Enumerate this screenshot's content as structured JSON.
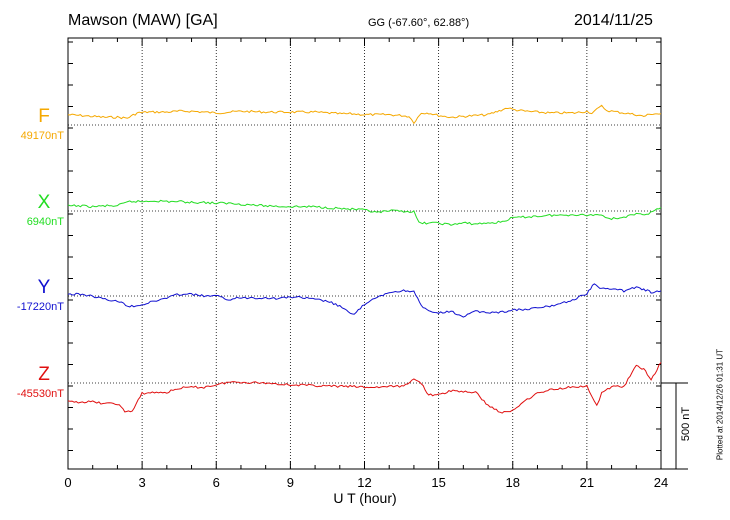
{
  "header": {
    "station": "Mawson (MAW)  [GA]",
    "coords": "GG (-67.60°,  62.88°)",
    "date": "2014/11/25"
  },
  "footer_note": "Plotted at 2014/12/26 01:31  UT",
  "scale_label": "500 nT",
  "colors": {
    "F": "#f5a800",
    "X": "#22dd22",
    "Y": "#1010d0",
    "Z": "#e01010"
  },
  "chart_data": {
    "type": "line",
    "xlabel": "U T (hour)",
    "xlim": [
      0,
      24
    ],
    "xticks": [
      "0",
      "3",
      "6",
      "9",
      "12",
      "15",
      "18",
      "21",
      "24"
    ],
    "grid": true,
    "series": [
      {
        "name": "F",
        "baseline_label": "49170nT",
        "x": [
          0,
          0.5,
          1,
          1.5,
          2,
          2.4,
          2.8,
          3.2,
          4,
          4.5,
          5,
          5.5,
          6,
          6.5,
          7,
          8,
          9,
          10,
          10.5,
          11,
          11.5,
          12,
          12.5,
          13,
          13.5,
          13.8,
          14,
          14.3,
          14.6,
          15,
          15.5,
          16,
          16.5,
          17,
          17.3,
          17.6,
          17.8,
          18,
          18.5,
          19,
          19.5,
          20,
          20.5,
          21,
          21.2,
          21.4,
          21.6,
          21.8,
          22,
          22.5,
          23,
          23.3,
          23.6,
          24
        ],
        "y": [
          60,
          55,
          50,
          45,
          45,
          40,
          70,
          75,
          75,
          80,
          80,
          75,
          70,
          75,
          80,
          75,
          75,
          75,
          70,
          65,
          65,
          60,
          60,
          60,
          55,
          50,
          15,
          70,
          70,
          55,
          45,
          50,
          55,
          60,
          75,
          90,
          100,
          90,
          80,
          75,
          70,
          70,
          70,
          80,
          70,
          90,
          110,
          85,
          80,
          70,
          60,
          50,
          65,
          65
        ]
      },
      {
        "name": "X",
        "baseline_label": "6940nT",
        "x": [
          0,
          0.5,
          1,
          1.5,
          2,
          2.5,
          3,
          3.5,
          4,
          4.5,
          5,
          5.5,
          6,
          6.5,
          7,
          8,
          9,
          10,
          11,
          12,
          12.5,
          13,
          13.5,
          14,
          14.2,
          14.5,
          15,
          15.5,
          16,
          16.5,
          17,
          17.5,
          18,
          18.5,
          19,
          19.5,
          20,
          20.5,
          21,
          21.5,
          22,
          22.5,
          23,
          23.5,
          24
        ],
        "y": [
          30,
          30,
          25,
          30,
          30,
          55,
          55,
          60,
          55,
          55,
          50,
          50,
          45,
          45,
          40,
          30,
          25,
          25,
          15,
          5,
          -10,
          0,
          0,
          -5,
          -70,
          -70,
          -70,
          -80,
          -70,
          -75,
          -70,
          -65,
          -40,
          -35,
          -30,
          -25,
          -25,
          -20,
          -25,
          -20,
          -45,
          -35,
          -20,
          -15,
          20
        ]
      },
      {
        "name": "Y",
        "baseline_label": "-17220nT",
        "x": [
          0,
          0.5,
          1,
          1.5,
          2,
          2.5,
          3,
          3.5,
          4,
          4.5,
          5,
          5.5,
          6,
          6.5,
          7,
          7.5,
          8,
          8.5,
          9,
          9.5,
          10,
          10.5,
          11,
          11.2,
          11.5,
          12,
          12.5,
          13,
          13.5,
          14,
          14.3,
          14.6,
          15,
          15.5,
          16,
          16.5,
          17,
          17.5,
          18,
          18.5,
          19,
          19.5,
          20,
          20.5,
          21,
          21.3,
          21.6,
          22,
          22.5,
          23,
          23.3,
          23.6,
          24
        ],
        "y": [
          10,
          10,
          0,
          -20,
          -30,
          -60,
          -50,
          -30,
          -10,
          10,
          10,
          0,
          0,
          -20,
          -10,
          -10,
          -10,
          -15,
          -5,
          -10,
          -20,
          -30,
          -60,
          -80,
          -110,
          -50,
          -10,
          20,
          30,
          30,
          -60,
          -90,
          -100,
          -90,
          -120,
          -90,
          -95,
          -95,
          -80,
          -80,
          -70,
          -60,
          -40,
          -20,
          15,
          70,
          40,
          45,
          30,
          50,
          40,
          20,
          30
        ]
      },
      {
        "name": "Z",
        "baseline_label": "-45530nT",
        "x": [
          0,
          0.5,
          1,
          1.5,
          2,
          2.3,
          2.6,
          3,
          3.5,
          4,
          4.5,
          5,
          5.5,
          6,
          6.5,
          7,
          8,
          9,
          10,
          11,
          11.5,
          12,
          12.5,
          13,
          13.5,
          14,
          14.3,
          14.6,
          15,
          15.5,
          16,
          16.5,
          17,
          17.5,
          17.8,
          18,
          18.5,
          19,
          19.5,
          20,
          20.5,
          21,
          21.2,
          21.4,
          21.6,
          22,
          22.5,
          23,
          23.3,
          23.6,
          24
        ],
        "y": [
          -110,
          -110,
          -110,
          -120,
          -120,
          -165,
          -165,
          -60,
          -55,
          -55,
          -30,
          -25,
          -25,
          -10,
          5,
          5,
          0,
          -10,
          -15,
          -20,
          -20,
          -25,
          -25,
          -20,
          -20,
          20,
          0,
          -70,
          -70,
          -45,
          -50,
          -55,
          -130,
          -170,
          -170,
          -160,
          -100,
          -60,
          -40,
          -30,
          -20,
          -20,
          -75,
          -135,
          -60,
          -20,
          -20,
          100,
          80,
          20,
          120
        ]
      }
    ]
  }
}
